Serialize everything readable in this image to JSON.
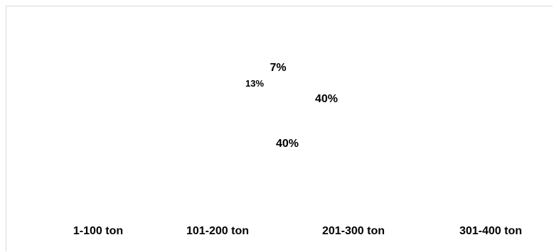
{
  "chart_data": {
    "type": "pie",
    "categories": [
      "1-100 ton",
      "101-200 ton",
      "201-300 ton",
      "301-400 ton"
    ],
    "values": [
      40,
      40,
      13,
      7
    ],
    "data_labels": [
      "40%",
      "40%",
      "13%",
      "7%"
    ],
    "legend_position": "bottom",
    "slice_colors": [
      "#ffffff",
      "#ffffff",
      "#ffffff",
      "#ffffff"
    ]
  }
}
